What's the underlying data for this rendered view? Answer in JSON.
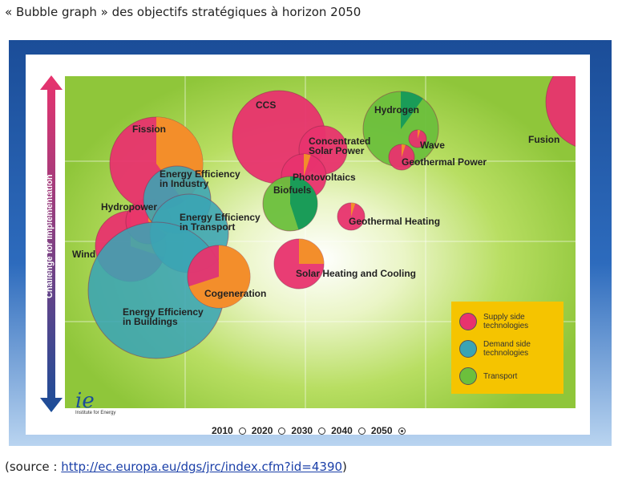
{
  "caption": "« Bubble graph » des objectifs stratégiques à horizon 2050",
  "source": {
    "prefix": "(source : ",
    "link": "http://ec.europa.eu/dgs/jrc/index.cfm?id=4390",
    "suffix": ")"
  },
  "colors": {
    "supply": "#e8336e",
    "demand": "#3aa4b4",
    "transport": "#6cbf3c",
    "segment": "#f39227",
    "transport_segment": "#159a5a"
  },
  "chart_data": {
    "type": "bubble",
    "ylabel": "Challenge for Implementation",
    "timeline": {
      "years": [
        "2010",
        "2020",
        "2030",
        "2040",
        "2050"
      ],
      "selected": "2050"
    },
    "legend": [
      {
        "label": "Supply side technologies",
        "category": "supply"
      },
      {
        "label": "Demand side technologies",
        "category": "demand"
      },
      {
        "label": "Transport",
        "category": "transport"
      }
    ],
    "logo_text": "Institute for Energy",
    "bubbles": [
      {
        "name": "Wind",
        "category": "supply",
        "segment": 0.3
      },
      {
        "name": "Hydropower",
        "category": "supply",
        "segment": 0.35
      },
      {
        "name": "Fission",
        "category": "supply",
        "segment": 0.4
      },
      {
        "name": "Energy Efficiency in Industry",
        "category": "demand",
        "segment": 0
      },
      {
        "name": "Energy Efficiency in Transport",
        "category": "demand",
        "segment": 0
      },
      {
        "name": "Energy Efficiency in Buildings",
        "category": "demand",
        "segment": 0
      },
      {
        "name": "Cogeneration",
        "category": "supply",
        "segment": 0.7
      },
      {
        "name": "CCS",
        "category": "supply",
        "segment": 0
      },
      {
        "name": "Concentrated Solar Power",
        "category": "supply",
        "segment": 0
      },
      {
        "name": "Photovoltaics",
        "category": "supply",
        "segment": 0.05
      },
      {
        "name": "Biofuels",
        "category": "transport",
        "segment": 0.45
      },
      {
        "name": "Hydrogen",
        "category": "transport",
        "segment": 0.1
      },
      {
        "name": "Wave",
        "category": "supply",
        "segment": 0.05
      },
      {
        "name": "Geothermal Power",
        "category": "supply",
        "segment": 0.05
      },
      {
        "name": "Geothermal Heating",
        "category": "supply",
        "segment": 0.05
      },
      {
        "name": "Solar Heating and Cooling",
        "category": "supply",
        "segment": 0.25
      },
      {
        "name": "Fusion",
        "category": "supply",
        "segment": 0
      }
    ]
  }
}
